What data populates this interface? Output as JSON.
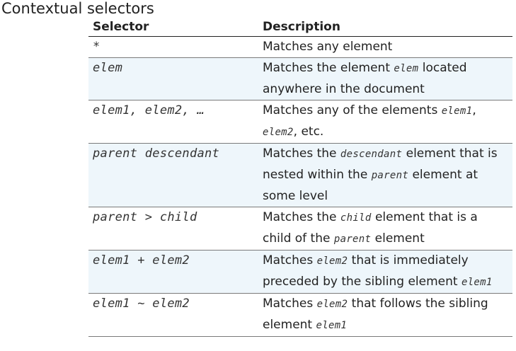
{
  "title": "Contextual selectors",
  "table": {
    "headers": [
      "Selector",
      "Description"
    ],
    "rows": [
      {
        "selector": "*",
        "desc": [
          {
            "t": "Matches any element"
          }
        ]
      },
      {
        "selector": "elem",
        "desc": [
          {
            "t": "Matches the element "
          },
          {
            "t": "elem",
            "code": true
          },
          {
            "t": " located anywhere in the document"
          }
        ]
      },
      {
        "selector": "elem1, elem2, …",
        "desc": [
          {
            "t": "Matches any of the elements "
          },
          {
            "t": "elem1",
            "code": true
          },
          {
            "t": ", "
          },
          {
            "t": "elem2",
            "code": true
          },
          {
            "t": ", etc."
          }
        ]
      },
      {
        "selector": "parent descendant",
        "desc": [
          {
            "t": "Matches the "
          },
          {
            "t": "descendant",
            "code": true
          },
          {
            "t": " element that is nested within the "
          },
          {
            "t": "parent",
            "code": true
          },
          {
            "t": " element at some level"
          }
        ]
      },
      {
        "selector": "parent > child",
        "desc": [
          {
            "t": "Matches the "
          },
          {
            "t": "child",
            "code": true
          },
          {
            "t": " element that is a child of the "
          },
          {
            "t": "parent",
            "code": true
          },
          {
            "t": " element"
          }
        ]
      },
      {
        "selector": "elem1 + elem2",
        "desc": [
          {
            "t": "Matches "
          },
          {
            "t": "elem2",
            "code": true
          },
          {
            "t": " that is immediately preceded by the sibling element "
          },
          {
            "t": "elem1",
            "code": true
          }
        ]
      },
      {
        "selector": "elem1 ~ elem2",
        "desc": [
          {
            "t": "Matches "
          },
          {
            "t": "elem2",
            "code": true
          },
          {
            "t": " that follows the sibling element "
          },
          {
            "t": "elem1",
            "code": true
          }
        ]
      }
    ]
  }
}
